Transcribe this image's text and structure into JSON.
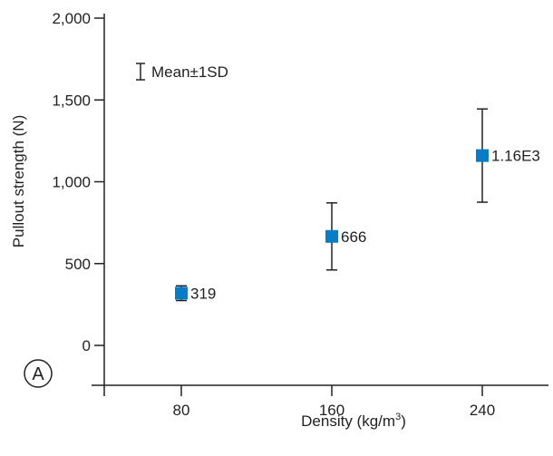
{
  "panel_label": "A",
  "legend": {
    "text": "Mean±1SD"
  },
  "chart_data": {
    "type": "scatter",
    "title": "",
    "xlabel": "Density (kg/m",
    "xlabel_sup": "3",
    "xlabel_close": ")",
    "ylabel": "Pullout strength (N)",
    "x_ticks": [
      "80",
      "160",
      "240"
    ],
    "y_ticks": [
      "0",
      "500",
      "1,000",
      "1,500",
      "2,000"
    ],
    "ylim": [
      0,
      2000
    ],
    "grid": false,
    "legend_position": "top-left",
    "marker_color": "#0a7cc4",
    "points": [
      {
        "x": 80,
        "y": 319,
        "sd": 45,
        "label": "319"
      },
      {
        "x": 160,
        "y": 666,
        "sd": 205,
        "label": "666"
      },
      {
        "x": 240,
        "y": 1160,
        "sd": 285,
        "label": "1.16E3"
      }
    ]
  }
}
